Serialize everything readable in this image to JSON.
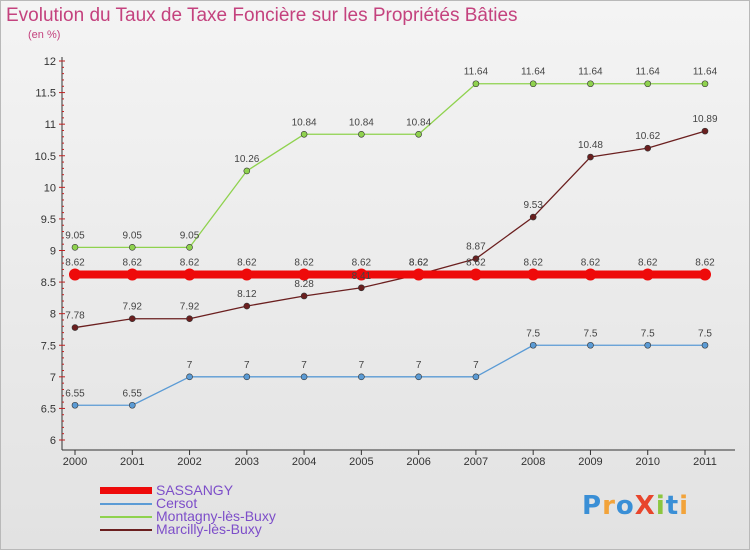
{
  "title": "Evolution du Taux de Taxe Foncière sur les Propriétés Bâties",
  "subtitle": "(en %)",
  "logo": {
    "text": "ProXiti",
    "letters": [
      {
        "ch": "P",
        "color": "#3a8fd6"
      },
      {
        "ch": "r",
        "color": "#f2a33a"
      },
      {
        "ch": "o",
        "color": "#3a8fd6"
      },
      {
        "ch": "X",
        "color": "#e8452c"
      },
      {
        "ch": "i",
        "color": "#8cc63f"
      },
      {
        "ch": "t",
        "color": "#3a8fd6"
      },
      {
        "ch": "i",
        "color": "#f2a33a"
      }
    ]
  },
  "chart_data": {
    "type": "line",
    "title": "Evolution du Taux de Taxe Foncière sur les Propriétés Bâties",
    "ylabel": "(en %)",
    "xlabel": "",
    "x": [
      "2000",
      "2001",
      "2002",
      "2003",
      "2004",
      "2005",
      "2006",
      "2007",
      "2008",
      "2009",
      "2010",
      "2011"
    ],
    "ylim": [
      6,
      12
    ],
    "yticks": [
      "6",
      "6.5",
      "7",
      "7.5",
      "8",
      "8.5",
      "9",
      "9.5",
      "10",
      "10.5",
      "11",
      "11.5",
      "12"
    ],
    "grid": false,
    "legend_position": "bottom-left",
    "series": [
      {
        "name": "SASSANGY",
        "color": "#ee0a0a",
        "thick": true,
        "values": [
          8.62,
          8.62,
          8.62,
          8.62,
          8.62,
          8.62,
          8.62,
          8.62,
          8.62,
          8.62,
          8.62,
          8.62
        ],
        "labels": [
          "8.62",
          "8.62",
          "8.62",
          "8.62",
          "8.62",
          "8.62",
          "8.62",
          "8.62",
          "8.62",
          "8.62",
          "8.62",
          "8.62"
        ]
      },
      {
        "name": "Cersot",
        "color": "#5b9bd5",
        "values": [
          6.55,
          6.55,
          7,
          7,
          7,
          7,
          7,
          7,
          7.5,
          7.5,
          7.5,
          7.5
        ],
        "labels": [
          "6.55",
          "6.55",
          "7",
          "7",
          "7",
          "7",
          "7",
          "7",
          "7.5",
          "7.5",
          "7.5",
          "7.5"
        ]
      },
      {
        "name": "Montagny-lès-Buxy",
        "color": "#8fd24e",
        "values": [
          9.05,
          9.05,
          9.05,
          10.26,
          10.84,
          10.84,
          10.84,
          11.64,
          11.64,
          11.64,
          11.64,
          11.64
        ],
        "labels": [
          "9.05",
          "9.05",
          "9.05",
          "10.26",
          "10.84",
          "10.84",
          "10.84",
          "11.64",
          "11.64",
          "11.64",
          "11.64",
          "11.64"
        ]
      },
      {
        "name": "Marcilly-lès-Buxy",
        "color": "#6b1f1f",
        "values": [
          7.78,
          7.92,
          7.92,
          8.12,
          8.28,
          8.41,
          8.62,
          8.87,
          9.53,
          10.48,
          10.62,
          10.89
        ],
        "labels": [
          "7.78",
          "7.92",
          "7.92",
          "8.12",
          "8.28",
          "8.41",
          "8.62",
          "8.87",
          "9.53",
          "10.48",
          "10.62",
          "10.89"
        ]
      }
    ]
  }
}
